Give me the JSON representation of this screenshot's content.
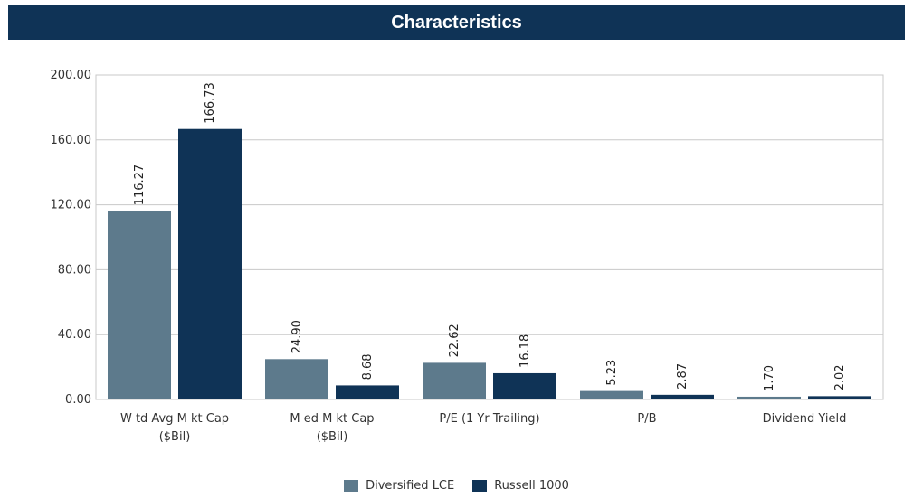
{
  "title": "Characteristics",
  "colors": {
    "header_bg": "#0f3356",
    "series_colors": [
      "#5d7a8c",
      "#0f3356"
    ]
  },
  "chart_data": {
    "type": "bar",
    "title": "",
    "xlabel": "",
    "ylabel": "",
    "ylim": [
      0,
      200
    ],
    "ytick_values": [
      0,
      40,
      80,
      120,
      160,
      200
    ],
    "ytick_labels": [
      "0.00",
      "40.00",
      "80.00",
      "120.00",
      "160.00",
      "200.00"
    ],
    "grid": true,
    "legend_position": "bottom",
    "categories": [
      [
        "W td Avg M kt Cap",
        "($Bil)"
      ],
      [
        "M ed M kt Cap",
        "($Bil)"
      ],
      [
        "P/E (1 Yr Trailing)"
      ],
      [
        "P/B"
      ],
      [
        "Dividend Yield"
      ]
    ],
    "series": [
      {
        "name": "Diversified LCE",
        "values": [
          116.27,
          24.9,
          22.62,
          5.23,
          1.7
        ],
        "labels": [
          "116.27",
          "24.90",
          "22.62",
          "5.23",
          "1.70"
        ]
      },
      {
        "name": "Russell 1000",
        "values": [
          166.73,
          8.68,
          16.18,
          2.87,
          2.02
        ],
        "labels": [
          "166.73",
          "8.68",
          "16.18",
          "2.87",
          "2.02"
        ]
      }
    ]
  }
}
